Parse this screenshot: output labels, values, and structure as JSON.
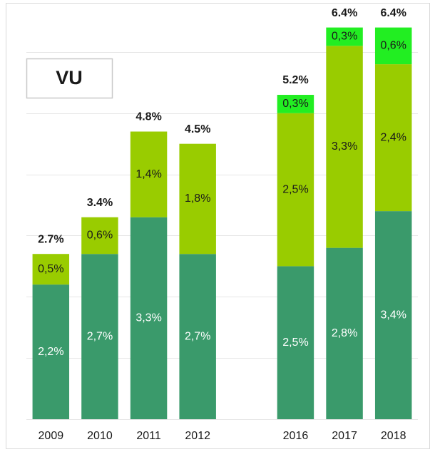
{
  "chart_data": {
    "type": "stacked_bar",
    "annotation": "VU",
    "categories": [
      "2009",
      "2010",
      "2011",
      "2012",
      null,
      "2016",
      "2017",
      "2018"
    ],
    "series": [
      {
        "color": "#3a9a6b",
        "values": [
          2.2,
          2.7,
          3.3,
          2.7,
          null,
          2.5,
          2.8,
          3.4
        ],
        "value_labels": [
          "2,2%",
          "2,7%",
          "3,3%",
          "2,7%",
          null,
          "2,5%",
          "2,8%",
          "3,4%"
        ]
      },
      {
        "color": "#99cc00",
        "values": [
          0.5,
          0.6,
          1.4,
          1.8,
          null,
          2.5,
          3.3,
          2.4
        ],
        "value_labels": [
          "0,5%",
          "0,6%",
          "1,4%",
          "1,8%",
          null,
          "2,5%",
          "3,3%",
          "2,4%"
        ]
      },
      {
        "color": "#22ee22",
        "values": [
          null,
          null,
          null,
          null,
          null,
          0.3,
          0.3,
          0.6
        ],
        "value_labels": [
          null,
          null,
          null,
          null,
          null,
          "0,3%",
          "0,3%",
          "0,6%"
        ]
      }
    ],
    "totals": [
      2.7,
      3.4,
      4.8,
      4.5,
      null,
      5.2,
      6.4,
      6.4
    ],
    "total_labels": [
      "2.7%",
      "3.4%",
      "4.8%",
      "4.5%",
      null,
      "5.2%",
      "6.4%",
      "6.4%"
    ],
    "ylim": [
      0,
      6.5
    ],
    "yticks": [
      0,
      1,
      2,
      3,
      4,
      5,
      6
    ],
    "grid": true
  }
}
